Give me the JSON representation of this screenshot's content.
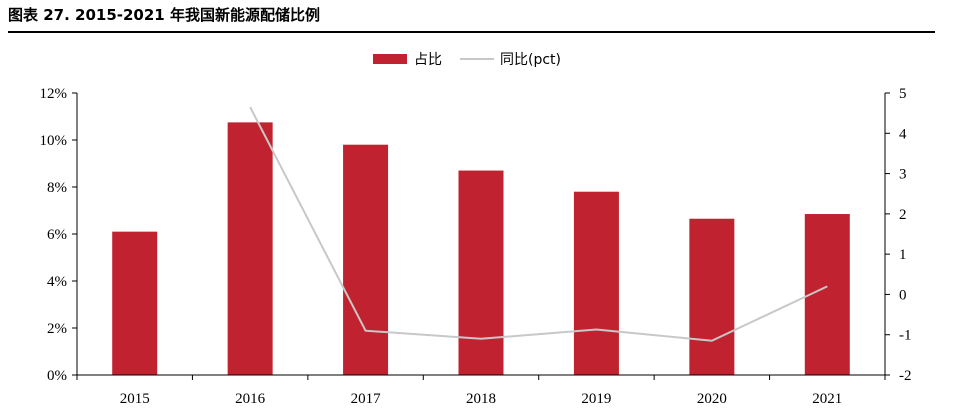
{
  "page": {
    "title": "图表 27. 2015-2021 年我国新能源配储比例"
  },
  "colors": {
    "bar": "#C0232F",
    "line": "#C8C8C8",
    "axis": "#000000"
  },
  "chart_data": {
    "type": "bar",
    "title": "",
    "categories": [
      "2015",
      "2016",
      "2017",
      "2018",
      "2019",
      "2020",
      "2021"
    ],
    "series": [
      {
        "name": "占比",
        "type": "bar",
        "axis": "left",
        "values": [
          6.1,
          10.75,
          9.8,
          8.7,
          7.8,
          6.65,
          6.85
        ]
      },
      {
        "name": "同比(pct)",
        "type": "line",
        "axis": "right",
        "values": [
          null,
          4.65,
          -0.9,
          -1.1,
          -0.87,
          -1.15,
          0.2
        ]
      }
    ],
    "y_left": {
      "min": 0,
      "max": 12,
      "ticks": [
        "0%",
        "2%",
        "4%",
        "6%",
        "8%",
        "10%",
        "12%"
      ]
    },
    "y_right": {
      "min": -2,
      "max": 5,
      "ticks": [
        "-2",
        "-1",
        "0",
        "1",
        "2",
        "3",
        "4",
        "5"
      ]
    },
    "legend_position": "top-center",
    "grid": false
  }
}
